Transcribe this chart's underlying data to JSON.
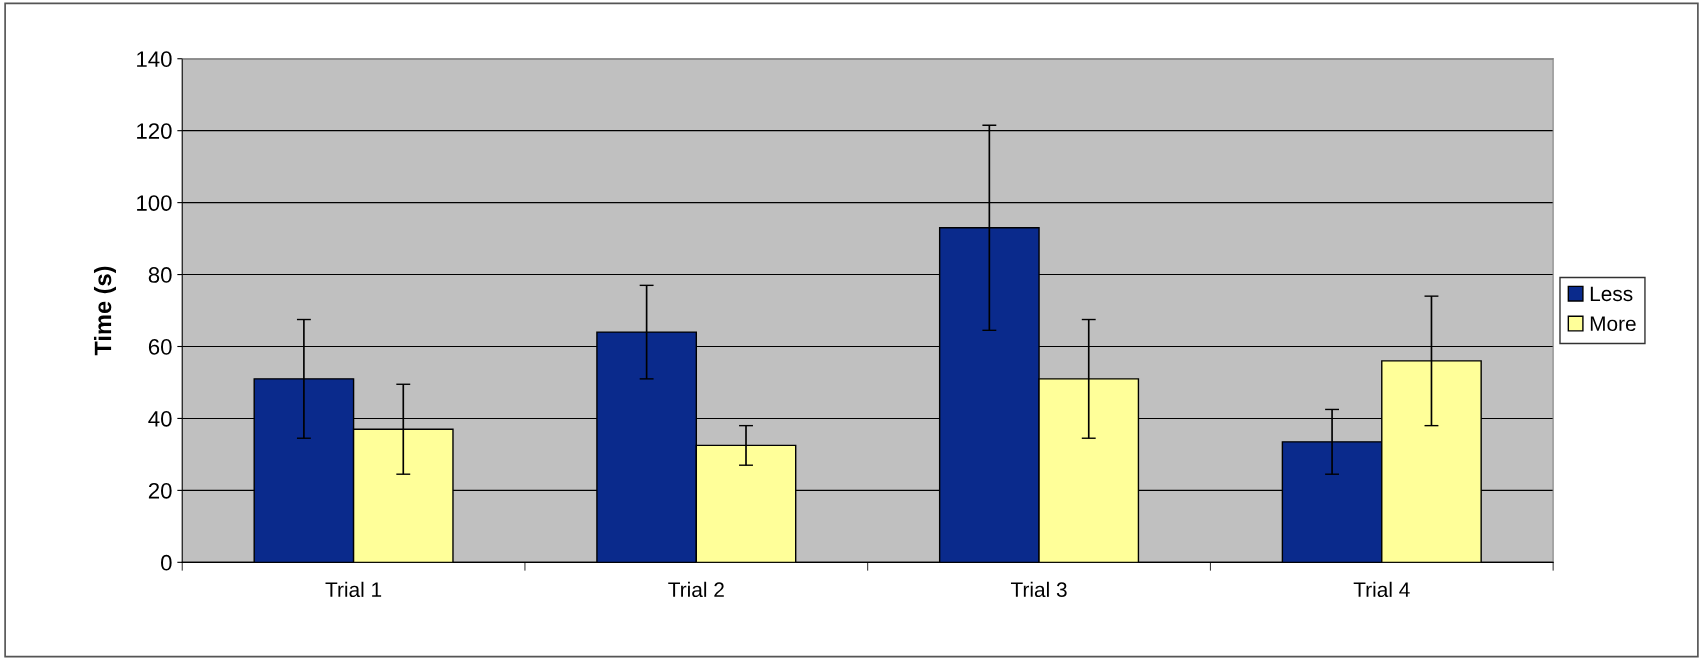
{
  "chart_data": {
    "type": "bar",
    "ylabel": "Time (s)",
    "categories": [
      "Trial 1",
      "Trial 2",
      "Trial 3",
      "Trial 4"
    ],
    "series": [
      {
        "name": "Less",
        "color": "#0a2a8c",
        "values": [
          51,
          64,
          93,
          33.5
        ],
        "errors": [
          16.5,
          13,
          28.5,
          9
        ]
      },
      {
        "name": "More",
        "color": "#ffff99",
        "values": [
          37,
          32.5,
          51,
          56
        ],
        "errors": [
          12.5,
          5.5,
          16.5,
          18
        ]
      }
    ],
    "ylim": [
      0,
      140
    ],
    "yticks": [
      0,
      20,
      40,
      60,
      80,
      100,
      120,
      140
    ],
    "grid": "y",
    "legend": "right"
  }
}
